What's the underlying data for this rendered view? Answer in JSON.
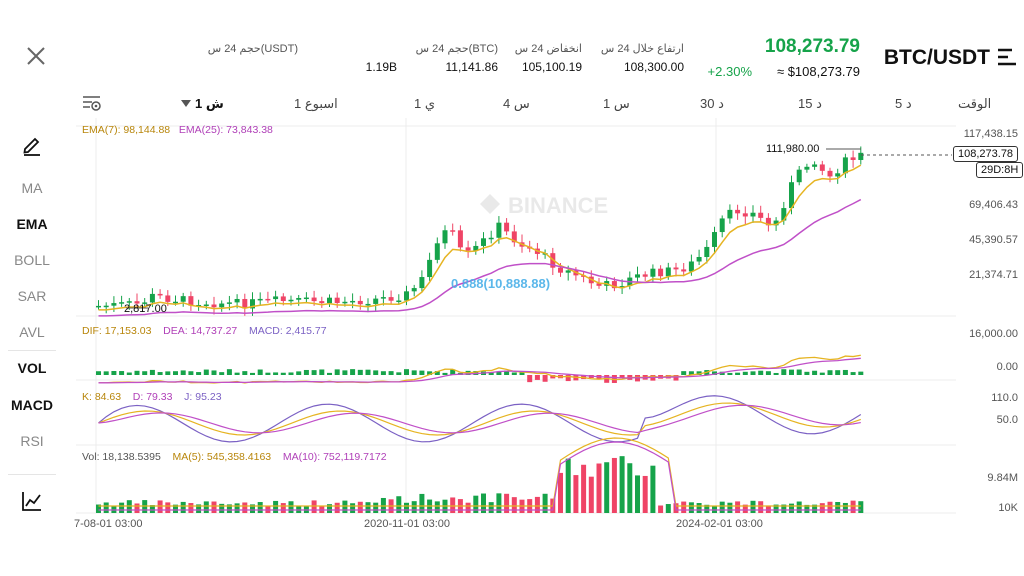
{
  "header": {
    "symbol": "BTC/USDT",
    "price": "108,273.79",
    "change": "+2.30%",
    "approx": "≈ $108,273.79",
    "stats": [
      {
        "label": "ارتفاع خلال 24 س",
        "value": "108,300.00"
      },
      {
        "label": "انخفاض 24 س",
        "value": "105,100.19"
      },
      {
        "label": "حجم 24 س(BTC)",
        "value": "11,141.86"
      },
      {
        "label": "حجم 24 س(USDT)",
        "value": "1.19B"
      }
    ]
  },
  "timeframes": {
    "time_label": "الوقت",
    "items": [
      "5 د",
      "15 د",
      "30 د",
      "1 س",
      "4 س",
      "1 ي",
      "1 اسبوع",
      "1 ش"
    ],
    "active": "1 ش"
  },
  "sidebar": {
    "items": [
      "MA",
      "EMA",
      "BOLL",
      "SAR",
      "AVL",
      "VOL",
      "MACD",
      "RSI"
    ]
  },
  "main_chart": {
    "ema7": "EMA(7): 98,144.88",
    "ema25": "EMA(25): 73,843.38",
    "y_labels": [
      "117,438.15",
      "69,406.43",
      "45,390.57",
      "21,374.71"
    ],
    "high_label": "111,980.00",
    "low_label": "2,817.00",
    "current_price_tag": "108,273.78",
    "countdown_tag": "29D:8H",
    "watermark": "BINANCE",
    "overlay_text": "0.888(10,888.88)"
  },
  "macd": {
    "dif": "DIF: 17,153.03",
    "dea": "DEA: 14,737.27",
    "macd": "MACD: 2,415.77",
    "y_labels": [
      "16,000.00",
      "0.00"
    ]
  },
  "kdj": {
    "k": "K: 84.63",
    "d": "D: 79.33",
    "j": "J: 95.23",
    "y_labels": [
      "110.0",
      "50.0"
    ]
  },
  "volume": {
    "vol": "Vol: 18,138.5395",
    "ma5": "MA(5): 545,358.4163",
    "ma10": "MA(10): 752,119.7172",
    "y_labels": [
      "9.84M",
      "10K"
    ]
  },
  "x_axis": [
    "7-08-01 03:00",
    "2020-11-01 03:00",
    "2024-02-01 03:00"
  ],
  "colors": {
    "up": "#16a34a",
    "down": "#ef4466",
    "ema7": "#e6b422",
    "ema25": "#c050c8",
    "k": "#e6b422",
    "d": "#c050c8",
    "j": "#7b61c4"
  }
}
